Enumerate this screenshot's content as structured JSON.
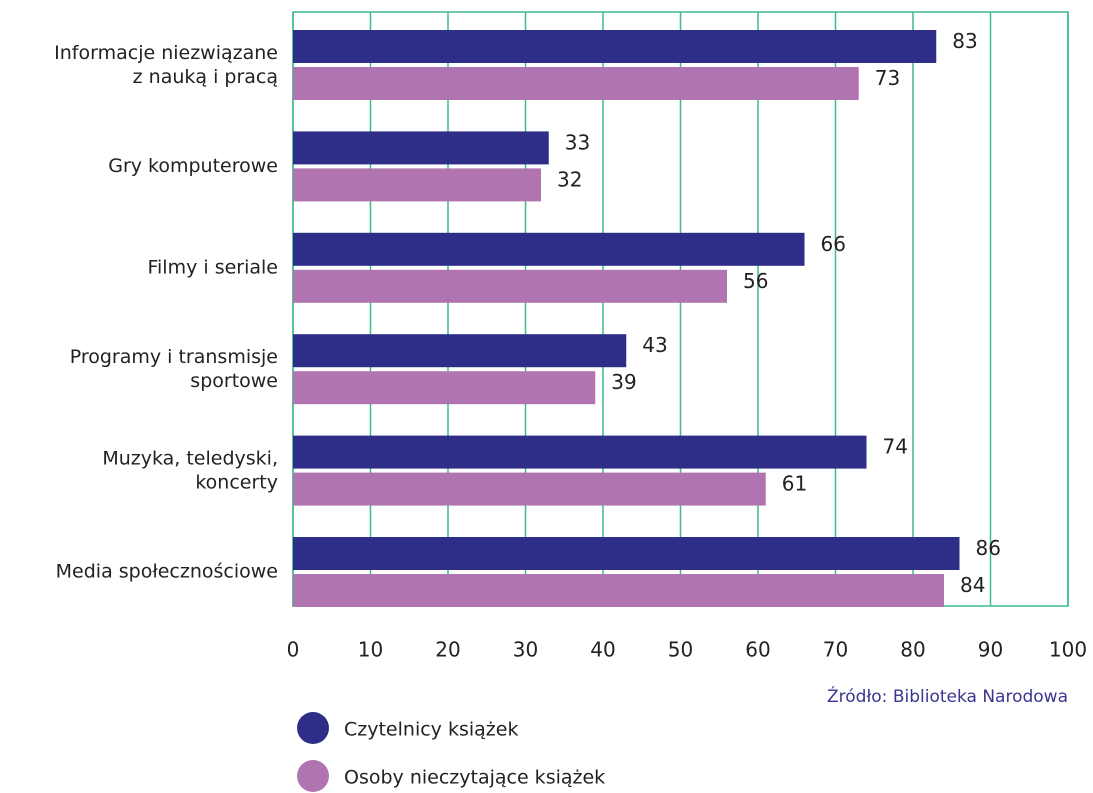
{
  "chart_data": {
    "type": "bar",
    "orientation": "horizontal",
    "categories": [
      "Informacje niezwiązane\nz nauką i pracą",
      "Gry komputerowe",
      "Filmy i seriale",
      "Programy i transmisje\nsportowe",
      "Muzyka, teledyski,\nkoncerty",
      "Media społecznościowe"
    ],
    "series": [
      {
        "name": "Czytelnicy książek",
        "color": "#2e2d88",
        "values": [
          83,
          33,
          66,
          43,
          74,
          86
        ]
      },
      {
        "name": "Osoby nieczytające książek",
        "color": "#b075b0",
        "values": [
          73,
          32,
          56,
          39,
          61,
          84
        ]
      }
    ],
    "xlim": [
      0,
      100
    ],
    "xticks": [
      0,
      10,
      20,
      30,
      40,
      50,
      60,
      70,
      80,
      90,
      100
    ],
    "grid": true,
    "source": "Źródło: Biblioteka Narodowa",
    "legend": "bottom-left"
  }
}
